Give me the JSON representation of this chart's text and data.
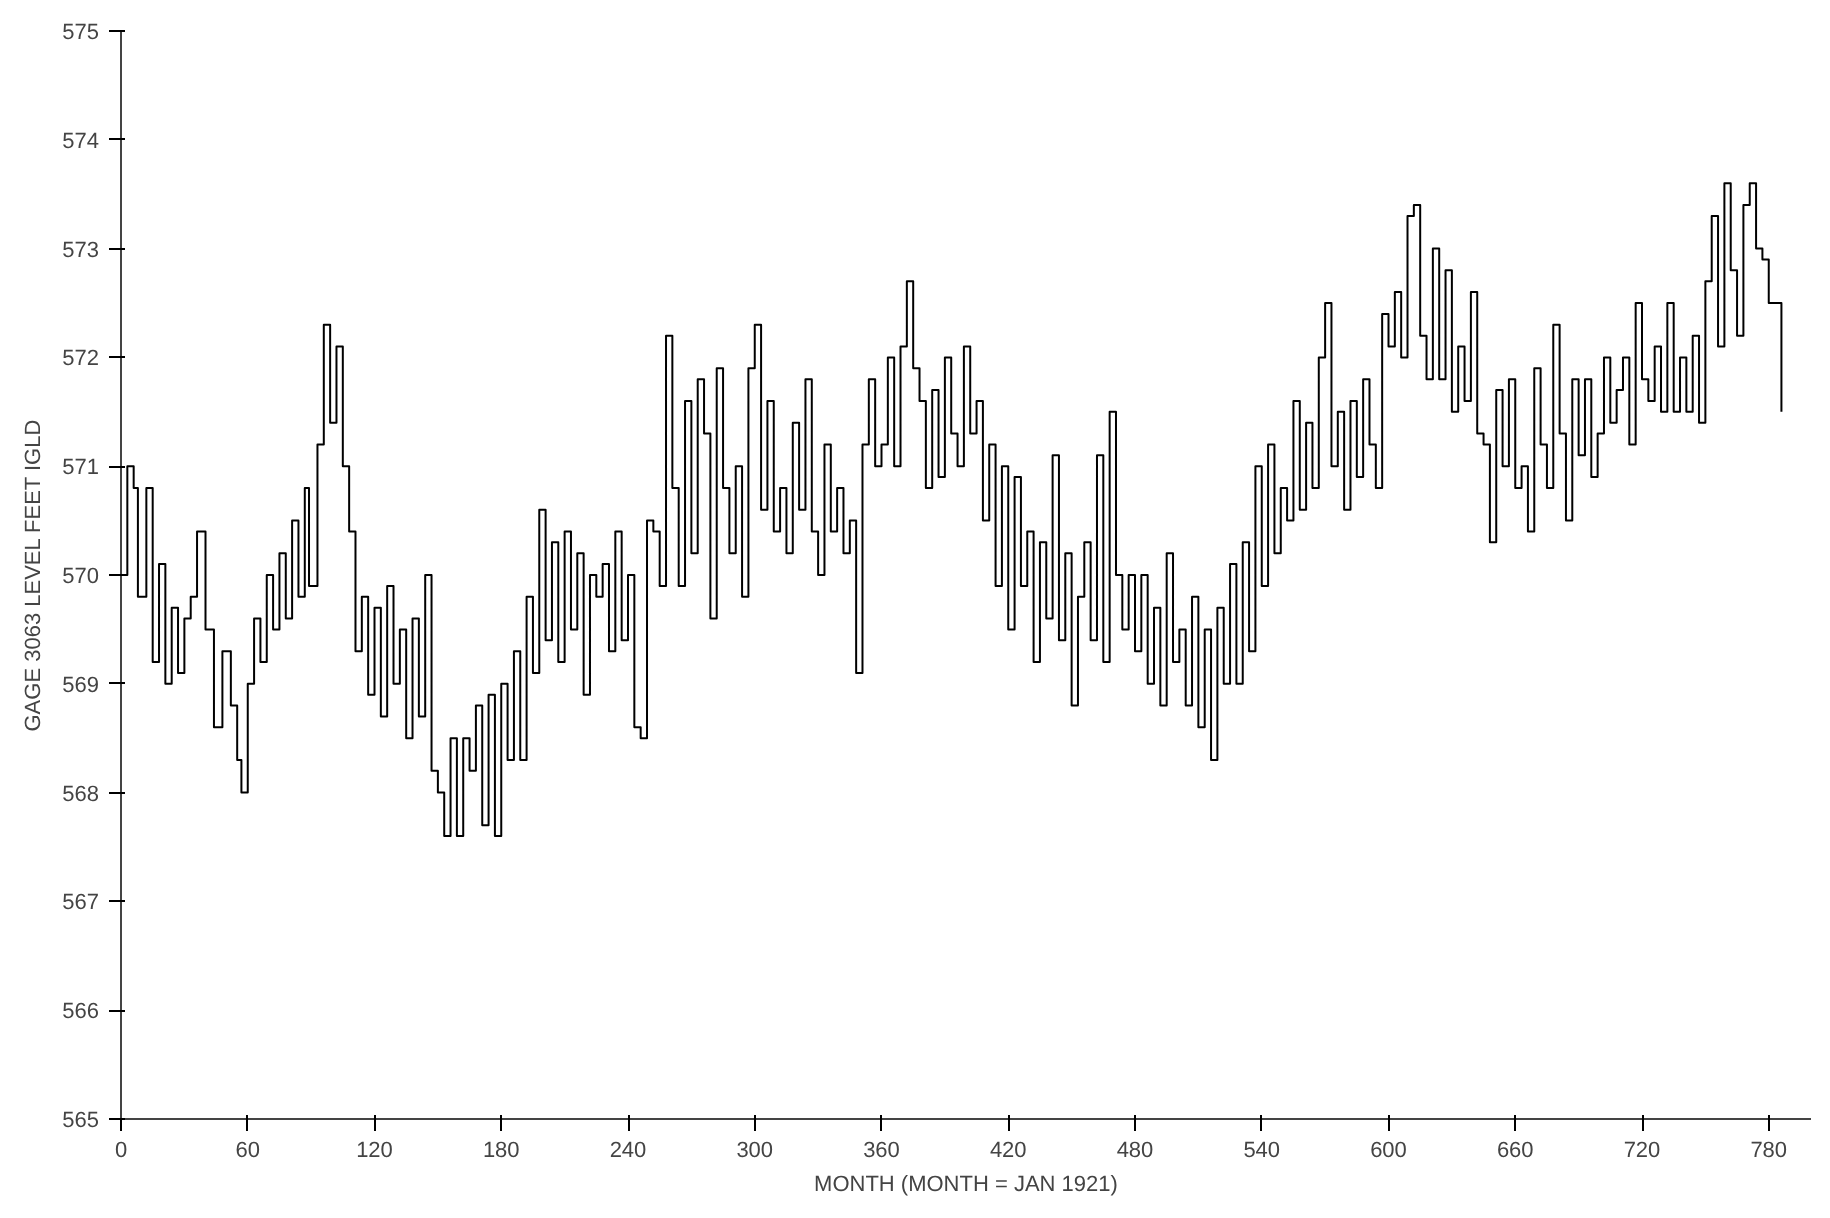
{
  "chart_data": {
    "type": "step",
    "xlabel": "MONTH (MONTH = JAN 1921)",
    "ylabel": "GAGE 3063 LEVEL FEET IGLD",
    "xlim": [
      0,
      800
    ],
    "xticks": [
      0,
      60,
      120,
      180,
      240,
      300,
      360,
      420,
      480,
      540,
      600,
      660,
      720,
      780
    ],
    "ylim": [
      565,
      575
    ],
    "yticks": [
      565,
      566,
      567,
      568,
      569,
      570,
      571,
      572,
      573,
      574,
      575
    ],
    "grid": false,
    "series": [
      {
        "color": "#000000",
        "x": [
          0,
          3,
          6,
          8,
          12,
          15,
          18,
          21,
          24,
          27,
          30,
          33,
          36,
          40,
          44,
          48,
          52,
          55,
          57,
          60,
          63,
          66,
          69,
          72,
          75,
          78,
          81,
          84,
          87,
          89,
          93,
          96,
          99,
          102,
          105,
          108,
          111,
          114,
          117,
          120,
          123,
          126,
          129,
          132,
          135,
          138,
          141,
          144,
          147,
          150,
          153,
          156,
          159,
          162,
          165,
          168,
          171,
          174,
          177,
          180,
          183,
          186,
          189,
          192,
          195,
          198,
          201,
          204,
          207,
          210,
          213,
          216,
          219,
          222,
          225,
          228,
          231,
          234,
          237,
          240,
          243,
          246,
          249,
          252,
          255,
          258,
          261,
          264,
          267,
          270,
          273,
          276,
          279,
          282,
          285,
          288,
          291,
          294,
          297,
          300,
          303,
          306,
          309,
          312,
          315,
          318,
          321,
          324,
          327,
          330,
          333,
          336,
          339,
          342,
          345,
          348,
          351,
          354,
          357,
          360,
          363,
          366,
          369,
          372,
          375,
          378,
          381,
          384,
          387,
          390,
          393,
          396,
          399,
          402,
          405,
          408,
          411,
          414,
          417,
          420,
          423,
          426,
          429,
          432,
          435,
          438,
          441,
          444,
          447,
          450,
          453,
          456,
          459,
          462,
          465,
          468,
          471,
          474,
          477,
          480,
          483,
          486,
          489,
          492,
          495,
          498,
          501,
          504,
          507,
          510,
          513,
          516,
          519,
          522,
          525,
          528,
          531,
          534,
          537,
          540,
          543,
          546,
          549,
          552,
          555,
          558,
          561,
          564,
          567,
          570,
          573,
          576,
          579,
          582,
          585,
          588,
          591,
          594,
          597,
          600,
          603,
          606,
          609,
          612,
          615,
          618,
          621,
          624,
          627,
          630,
          633,
          636,
          639,
          642,
          645,
          648,
          651,
          654,
          657,
          660,
          663,
          666,
          669,
          672,
          675,
          678,
          681,
          684,
          687,
          690,
          693,
          696,
          699,
          702,
          705,
          708,
          711,
          714,
          717,
          720,
          723,
          726,
          729,
          732,
          735,
          738,
          741,
          744,
          747,
          750,
          753,
          756,
          759,
          762,
          765,
          768,
          771,
          774,
          777,
          780,
          783,
          786
        ],
        "values": [
          570.0,
          571.0,
          570.8,
          569.8,
          570.8,
          569.2,
          570.1,
          569.0,
          569.7,
          569.1,
          569.6,
          569.8,
          570.4,
          569.5,
          568.6,
          569.3,
          568.8,
          568.3,
          568.0,
          569.0,
          569.6,
          569.2,
          570.0,
          569.5,
          570.2,
          569.6,
          570.5,
          569.8,
          570.8,
          569.9,
          571.2,
          572.3,
          571.4,
          572.1,
          571.0,
          570.4,
          569.3,
          569.8,
          568.9,
          569.7,
          568.7,
          569.9,
          569.0,
          569.5,
          568.5,
          569.6,
          568.7,
          570.0,
          568.2,
          568.0,
          567.6,
          568.5,
          567.6,
          568.5,
          568.2,
          568.8,
          567.7,
          568.9,
          567.6,
          569.0,
          568.3,
          569.3,
          568.3,
          569.8,
          569.1,
          570.6,
          569.4,
          570.3,
          569.2,
          570.4,
          569.5,
          570.2,
          568.9,
          570.0,
          569.8,
          570.1,
          569.3,
          570.4,
          569.4,
          570.0,
          568.6,
          568.5,
          570.5,
          570.4,
          569.9,
          572.2,
          570.8,
          569.9,
          571.6,
          570.2,
          571.8,
          571.3,
          569.6,
          571.9,
          570.8,
          570.2,
          571.0,
          569.8,
          571.9,
          572.3,
          570.6,
          571.6,
          570.4,
          570.8,
          570.2,
          571.4,
          570.6,
          571.8,
          570.4,
          570.0,
          571.2,
          570.4,
          570.8,
          570.2,
          570.5,
          569.1,
          571.2,
          571.8,
          571.0,
          571.2,
          572.0,
          571.0,
          572.1,
          572.7,
          571.9,
          571.6,
          570.8,
          571.7,
          570.9,
          572.0,
          571.3,
          571.0,
          572.1,
          571.3,
          571.6,
          570.5,
          571.2,
          569.9,
          571.0,
          569.5,
          570.9,
          569.9,
          570.4,
          569.2,
          570.3,
          569.6,
          571.1,
          569.4,
          570.2,
          568.8,
          569.8,
          570.3,
          569.4,
          571.1,
          569.2,
          571.5,
          570.0,
          569.5,
          570.0,
          569.3,
          570.0,
          569.0,
          569.7,
          568.8,
          570.2,
          569.2,
          569.5,
          568.8,
          569.8,
          568.6,
          569.5,
          568.3,
          569.7,
          569.0,
          570.1,
          569.0,
          570.3,
          569.3,
          571.0,
          569.9,
          571.2,
          570.2,
          570.8,
          570.5,
          571.6,
          570.6,
          571.4,
          570.8,
          572.0,
          572.5,
          571.0,
          571.5,
          570.6,
          571.6,
          570.9,
          571.8,
          571.2,
          570.8,
          572.4,
          572.1,
          572.6,
          572.0,
          573.3,
          573.4,
          572.2,
          571.8,
          573.0,
          571.8,
          572.8,
          571.5,
          572.1,
          571.6,
          572.6,
          571.3,
          571.2,
          570.3,
          571.7,
          571.0,
          571.8,
          570.8,
          571.0,
          570.4,
          571.9,
          571.2,
          570.8,
          572.3,
          571.3,
          570.5,
          571.8,
          571.1,
          571.8,
          570.9,
          571.3,
          572.0,
          571.4,
          571.7,
          572.0,
          571.2,
          572.5,
          571.8,
          571.6,
          572.1,
          571.5,
          572.5,
          571.5,
          572.0,
          571.5,
          572.2,
          571.4,
          572.7,
          573.3,
          572.1,
          573.6,
          572.8,
          572.2,
          573.4,
          573.6,
          573.0,
          572.9,
          572.5,
          572.5,
          571.5
        ]
      }
    ]
  }
}
